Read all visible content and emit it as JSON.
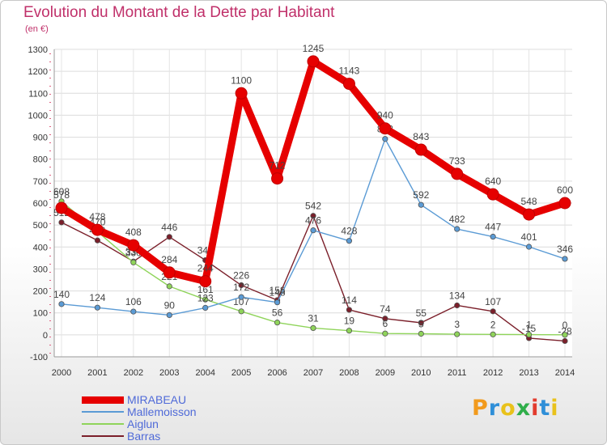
{
  "title": "Evolution du Montant de la Dette par Habitant",
  "subtitle": "(en €)",
  "logo_text": "Proxiti",
  "chart_data": {
    "type": "line",
    "title": "Evolution du Montant de la Dette par Habitant",
    "subtitle": "(en €)",
    "x": [
      "2000",
      "2001",
      "2002",
      "2003",
      "2004",
      "2005",
      "2006",
      "2007",
      "2008",
      "2009",
      "2010",
      "2011",
      "2012",
      "2013",
      "2014"
    ],
    "ylim": [
      -100,
      1300
    ],
    "yticks": [
      -100,
      0,
      100,
      200,
      300,
      400,
      500,
      600,
      700,
      800,
      900,
      1000,
      1100,
      1200,
      1300
    ],
    "grid": true,
    "legend_position": "bottom-left",
    "series": [
      {
        "name": "MIRABEAU",
        "color": "#e60000",
        "values": [
          578,
          478,
          408,
          284,
          244,
          1100,
          712,
          1245,
          1143,
          940,
          843,
          733,
          640,
          548,
          600
        ]
      },
      {
        "name": "Mallemoisson",
        "color": "#5b9bd5",
        "values": [
          140,
          124,
          106,
          90,
          123,
          172,
          148,
          476,
          428,
          892,
          592,
          482,
          447,
          401,
          346
        ]
      },
      {
        "name": "Aiglun",
        "color": "#8fd45a",
        "values": [
          608,
          470,
          330,
          221,
          161,
          107,
          56,
          31,
          19,
          6,
          5,
          3,
          2,
          1,
          0
        ]
      },
      {
        "name": "Barras",
        "color": "#7b1f2a",
        "values": [
          512,
          430,
          334,
          446,
          340,
          226,
          158,
          542,
          114,
          74,
          55,
          134,
          107,
          -15,
          -28
        ]
      }
    ]
  }
}
